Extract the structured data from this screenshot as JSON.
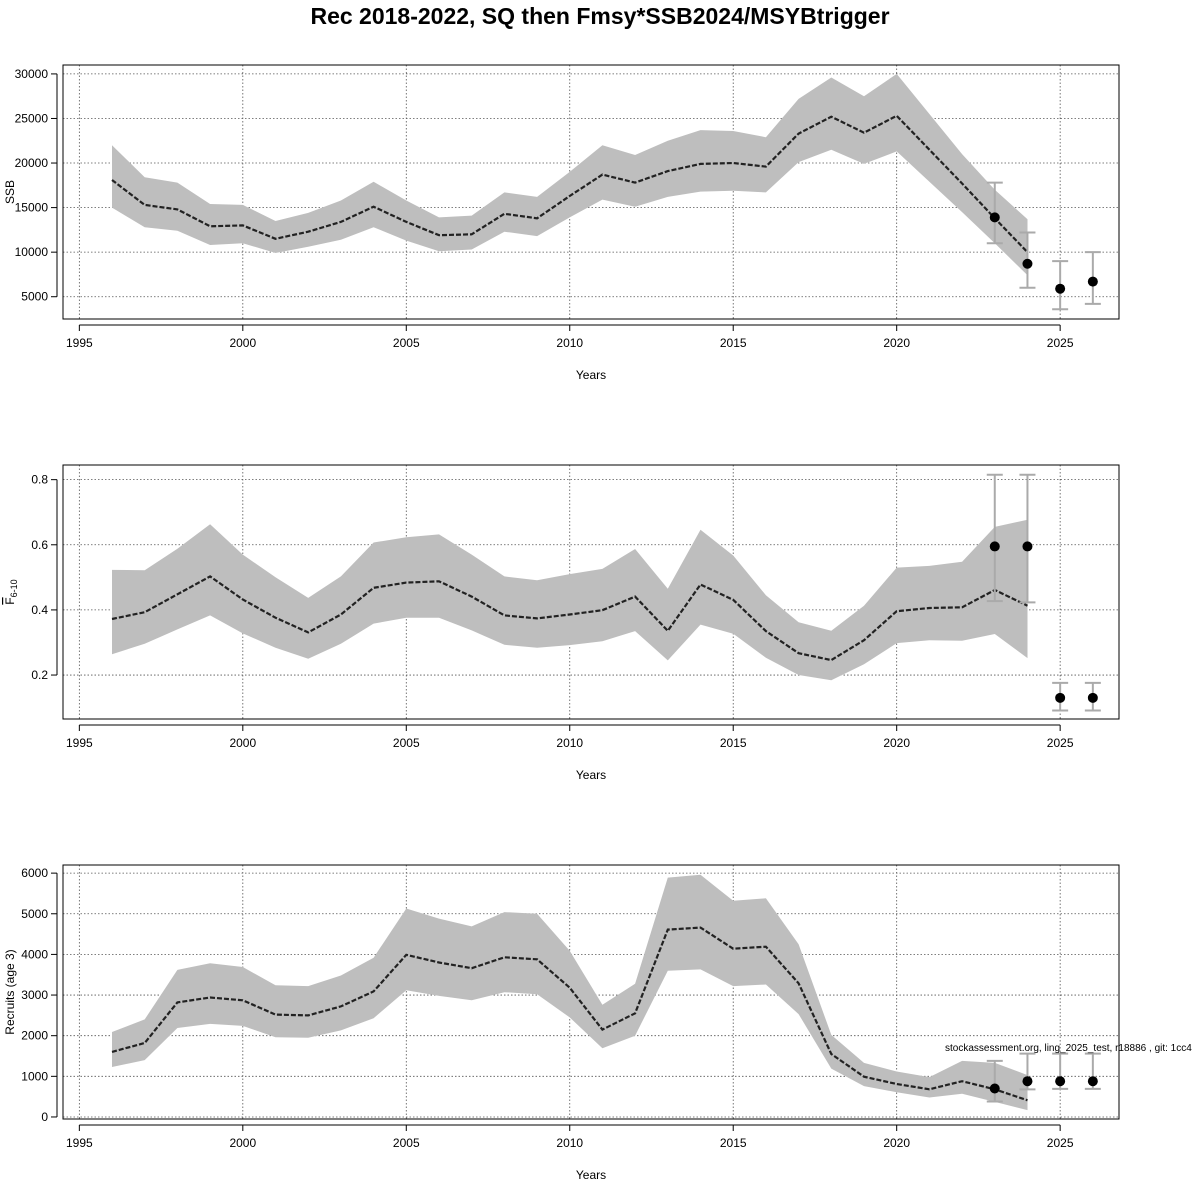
{
  "title": "Rec 2018-2022, SQ then Fmsy*SSB2024/MSYBtrigger",
  "watermark": "stockassessment.org, ling_2025_test, r18886 , git: 1cc4",
  "colors": {
    "band": "#bebebe",
    "line": "#222222",
    "point": "#000000",
    "errorbar": "#aaaaaa",
    "grid": "#555555"
  },
  "chart_data": [
    {
      "type": "line",
      "ylabel": "SSB",
      "xlabel": "Years",
      "xlim": [
        1994.5,
        2026.8
      ],
      "ylim": [
        2500,
        31000
      ],
      "xticks": [
        1995,
        2000,
        2005,
        2010,
        2015,
        2020,
        2025
      ],
      "yticks": [
        5000,
        10000,
        15000,
        20000,
        25000,
        30000
      ],
      "grid": true,
      "series": [
        {
          "x": [
            1996,
            1997,
            1998,
            1999,
            2000,
            2001,
            2002,
            2003,
            2004,
            2005,
            2006,
            2007,
            2008,
            2009,
            2010,
            2011,
            2012,
            2013,
            2014,
            2015,
            2016,
            2017,
            2018,
            2019,
            2020,
            2021,
            2022,
            2023,
            2024
          ],
          "y": [
            18100,
            15300,
            14800,
            12900,
            13000,
            11500,
            12300,
            13400,
            15100,
            13400,
            11900,
            12000,
            14300,
            13800,
            16300,
            18700,
            17800,
            19100,
            19900,
            20000,
            19600,
            23300,
            25200,
            23400,
            25300,
            21500,
            17700,
            13800,
            10000
          ],
          "lower": [
            15000,
            12800,
            12400,
            10800,
            11000,
            9900,
            10600,
            11400,
            12800,
            11300,
            10100,
            10300,
            12300,
            11800,
            13900,
            15900,
            15100,
            16200,
            16800,
            16900,
            16700,
            20100,
            21500,
            19900,
            21300,
            17900,
            14500,
            11000,
            7400
          ],
          "upper": [
            22000,
            18400,
            17800,
            15400,
            15300,
            13500,
            14400,
            15800,
            17900,
            15800,
            13900,
            14100,
            16700,
            16200,
            19000,
            22000,
            20900,
            22500,
            23700,
            23600,
            22900,
            27200,
            29600,
            27500,
            30000,
            25500,
            21000,
            17000,
            13700
          ]
        }
      ],
      "points": [
        {
          "x": 2023,
          "y": 13900,
          "lo": 11000,
          "hi": 17800
        },
        {
          "x": 2024,
          "y": 8700,
          "lo": 6000,
          "hi": 12200
        },
        {
          "x": 2025,
          "y": 5900,
          "lo": 3600,
          "hi": 9000
        },
        {
          "x": 2026,
          "y": 6700,
          "lo": 4200,
          "hi": 10000
        }
      ]
    },
    {
      "type": "line",
      "ylabel": "F",
      "ylabel_sub": "6-10",
      "xlabel": "Years",
      "xlim": [
        1994.5,
        2026.8
      ],
      "ylim": [
        0.065,
        0.845
      ],
      "xticks": [
        1995,
        2000,
        2005,
        2010,
        2015,
        2020,
        2025
      ],
      "yticks": [
        0.2,
        0.4,
        0.6,
        0.8
      ],
      "grid": true,
      "series": [
        {
          "x": [
            1996,
            1997,
            1998,
            1999,
            2000,
            2001,
            2002,
            2003,
            2004,
            2005,
            2006,
            2007,
            2008,
            2009,
            2010,
            2011,
            2012,
            2013,
            2014,
            2015,
            2016,
            2017,
            2018,
            2019,
            2020,
            2021,
            2022,
            2023,
            2024
          ],
          "y": [
            0.372,
            0.393,
            0.448,
            0.503,
            0.432,
            0.376,
            0.331,
            0.386,
            0.468,
            0.484,
            0.488,
            0.441,
            0.383,
            0.374,
            0.386,
            0.399,
            0.441,
            0.336,
            0.478,
            0.431,
            0.335,
            0.267,
            0.246,
            0.307,
            0.396,
            0.406,
            0.408,
            0.461,
            0.413
          ],
          "lower": [
            0.264,
            0.296,
            0.34,
            0.383,
            0.328,
            0.284,
            0.25,
            0.296,
            0.358,
            0.376,
            0.376,
            0.337,
            0.293,
            0.284,
            0.292,
            0.304,
            0.335,
            0.245,
            0.355,
            0.327,
            0.253,
            0.2,
            0.184,
            0.233,
            0.298,
            0.307,
            0.305,
            0.326,
            0.252
          ],
          "upper": [
            0.523,
            0.522,
            0.588,
            0.663,
            0.57,
            0.5,
            0.437,
            0.503,
            0.607,
            0.623,
            0.632,
            0.57,
            0.503,
            0.491,
            0.51,
            0.526,
            0.587,
            0.465,
            0.646,
            0.567,
            0.445,
            0.362,
            0.336,
            0.413,
            0.53,
            0.535,
            0.548,
            0.655,
            0.677
          ]
        }
      ],
      "points": [
        {
          "x": 2023,
          "y": 0.595,
          "lo": 0.427,
          "hi": 0.815
        },
        {
          "x": 2024,
          "y": 0.595,
          "lo": 0.423,
          "hi": 0.815
        },
        {
          "x": 2025,
          "y": 0.13,
          "lo": 0.091,
          "hi": 0.176
        },
        {
          "x": 2026,
          "y": 0.13,
          "lo": 0.091,
          "hi": 0.176
        }
      ]
    },
    {
      "type": "line",
      "ylabel": "Recruits (age 3)",
      "xlabel": "Years",
      "xlim": [
        1994.5,
        2026.8
      ],
      "ylim": [
        -50,
        6200
      ],
      "xticks": [
        1995,
        2000,
        2005,
        2010,
        2015,
        2020,
        2025
      ],
      "yticks": [
        0,
        1000,
        2000,
        3000,
        4000,
        5000,
        6000
      ],
      "grid": true,
      "series": [
        {
          "x": [
            1996,
            1997,
            1998,
            1999,
            2000,
            2001,
            2002,
            2003,
            2004,
            2005,
            2006,
            2007,
            2008,
            2009,
            2010,
            2011,
            2012,
            2013,
            2014,
            2015,
            2016,
            2017,
            2018,
            2019,
            2020,
            2021,
            2022,
            2023,
            2024
          ],
          "y": [
            1600,
            1820,
            2820,
            2940,
            2870,
            2520,
            2500,
            2720,
            3090,
            3990,
            3800,
            3660,
            3930,
            3880,
            3180,
            2150,
            2550,
            4610,
            4660,
            4140,
            4190,
            3290,
            1550,
            990,
            810,
            680,
            880,
            680,
            410
          ],
          "lower": [
            1230,
            1400,
            2190,
            2290,
            2240,
            1960,
            1950,
            2130,
            2430,
            3120,
            2980,
            2870,
            3070,
            3020,
            2450,
            1690,
            2000,
            3600,
            3630,
            3220,
            3260,
            2530,
            1190,
            760,
            610,
            480,
            570,
            370,
            170
          ],
          "upper": [
            2090,
            2400,
            3620,
            3780,
            3690,
            3240,
            3220,
            3480,
            3920,
            5130,
            4880,
            4690,
            5040,
            5000,
            4090,
            2760,
            3280,
            5890,
            5960,
            5320,
            5380,
            4250,
            2020,
            1330,
            1120,
            980,
            1380,
            1330,
            1030
          ]
        }
      ],
      "points": [
        {
          "x": 2023,
          "y": 700,
          "lo": 380,
          "hi": 1380
        },
        {
          "x": 2024,
          "y": 880,
          "lo": 680,
          "hi": 1560
        },
        {
          "x": 2025,
          "y": 880,
          "lo": 690,
          "hi": 1560
        },
        {
          "x": 2026,
          "y": 880,
          "lo": 690,
          "hi": 1560
        }
      ]
    }
  ]
}
